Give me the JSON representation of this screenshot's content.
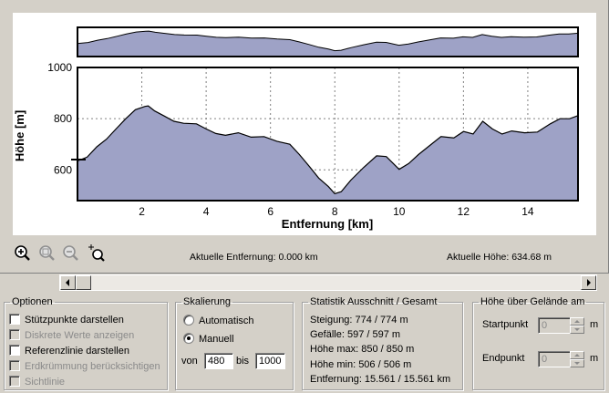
{
  "overview": {
    "x_range": [
      0,
      15.561
    ],
    "y_range": [
      420,
      900
    ]
  },
  "chart": {
    "ylabel": "Höhe [m]",
    "xlabel": "Entfernung [km]",
    "yticks": [
      "600",
      "800",
      "1000"
    ],
    "xticks": [
      "2",
      "4",
      "6",
      "8",
      "10",
      "12",
      "14"
    ]
  },
  "chart_data": {
    "type": "area",
    "xlabel": "Entfernung [km]",
    "ylabel": "Höhe [m]",
    "xlim": [
      0,
      15.561
    ],
    "ylim": [
      480,
      1000
    ],
    "grid": true,
    "x": [
      0,
      0.3,
      0.6,
      0.9,
      1.2,
      1.5,
      1.8,
      2.1,
      2.2,
      2.4,
      2.7,
      3.0,
      3.3,
      3.7,
      4.0,
      4.3,
      4.6,
      5.0,
      5.4,
      5.8,
      6.2,
      6.6,
      6.9,
      7.2,
      7.5,
      7.8,
      8.0,
      8.2,
      8.5,
      8.9,
      9.3,
      9.6,
      10.0,
      10.3,
      10.6,
      10.9,
      11.3,
      11.7,
      12.0,
      12.3,
      12.6,
      12.9,
      13.2,
      13.5,
      13.9,
      14.3,
      14.7,
      15.0,
      15.3,
      15.561
    ],
    "y": [
      635,
      650,
      690,
      720,
      760,
      800,
      835,
      848,
      850,
      830,
      810,
      790,
      782,
      780,
      760,
      742,
      735,
      745,
      728,
      730,
      712,
      700,
      660,
      615,
      568,
      535,
      507,
      515,
      560,
      610,
      655,
      652,
      602,
      625,
      660,
      690,
      730,
      725,
      750,
      740,
      790,
      760,
      740,
      752,
      745,
      748,
      780,
      800,
      800,
      812
    ]
  },
  "toolbar": {
    "icons": [
      "zoom-in-icon",
      "zoom-extent-icon",
      "zoom-out-icon",
      "zoom-window-icon"
    ]
  },
  "status": {
    "distance": "Aktuelle Entfernung: 0.000 km",
    "elevation": "Aktuelle Höhe: 634.68 m"
  },
  "optionen": {
    "title": "Optionen",
    "items": [
      {
        "label": "Stützpunkte darstellen",
        "checked": false,
        "enabled": true
      },
      {
        "label": "Diskrete Werte anzeigen",
        "checked": false,
        "enabled": false
      },
      {
        "label": "Referenzlinie darstellen",
        "checked": false,
        "enabled": true
      },
      {
        "label": "Erdkrümmung berücksichtigen",
        "checked": false,
        "enabled": false
      },
      {
        "label": "Sichtlinie",
        "checked": false,
        "enabled": false
      }
    ]
  },
  "skalierung": {
    "title": "Skalierung",
    "auto_label": "Automatisch",
    "manual_label": "Manuell",
    "selected": "Manuell",
    "von_label": "von",
    "bis_label": "bis",
    "von_value": "480",
    "bis_value": "1000"
  },
  "statistik": {
    "title": "Statistik  Ausschnitt / Gesamt",
    "lines": [
      "Steigung: 774 / 774 m",
      "Gefälle: 597 / 597 m",
      "Höhe max: 850 / 850 m",
      "Höhe min: 506 / 506 m",
      "Entfernung: 15.561 / 15.561 km"
    ]
  },
  "hoehe": {
    "title": "Höhe über Gelände am",
    "start_label": "Startpunkt",
    "end_label": "Endpunkt",
    "start_value": "0",
    "end_value": "0",
    "unit": "m"
  },
  "colors": {
    "fill": "#9ea2c6",
    "line": "#000000",
    "grid": "#808080"
  }
}
